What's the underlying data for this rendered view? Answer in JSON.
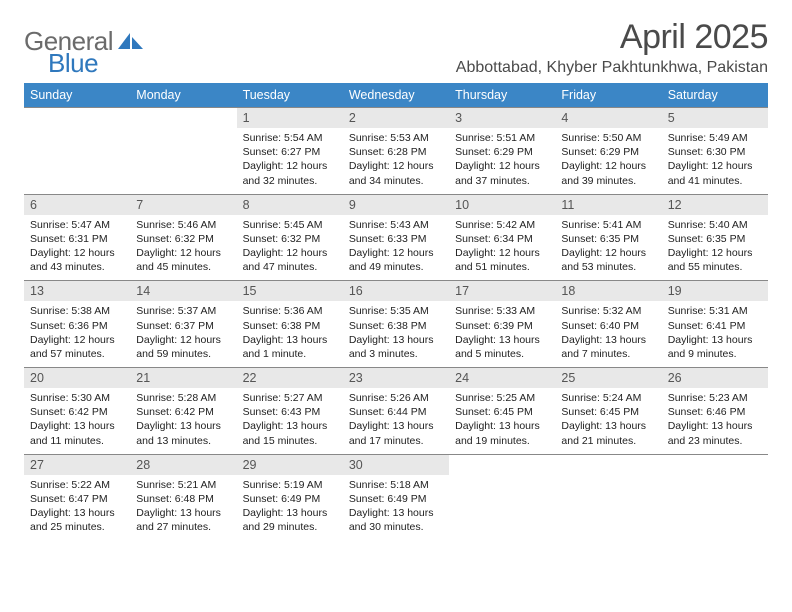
{
  "logo": {
    "text1": "General",
    "text2": "Blue"
  },
  "header": {
    "month_title": "April 2025",
    "location": "Abbottabad, Khyber Pakhtunkhwa, Pakistan"
  },
  "styling": {
    "header_bg": "#3b86c6",
    "header_text": "#ffffff",
    "daynum_bg": "#e8e8e8",
    "daynum_text": "#555555",
    "cell_text": "#222222",
    "page_bg": "#ffffff",
    "border_color": "#888888",
    "logo_gray": "#6b6b6b",
    "logo_blue": "#2f78bd",
    "title_color": "#4a4a4a",
    "font_family": "Arial",
    "month_title_size": 34,
    "location_size": 16,
    "weekday_size": 12.5,
    "daynum_size": 12.5,
    "cell_size": 10.5
  },
  "weekdays": [
    "Sunday",
    "Monday",
    "Tuesday",
    "Wednesday",
    "Thursday",
    "Friday",
    "Saturday"
  ],
  "weeks": [
    {
      "nums": [
        "",
        "",
        "1",
        "2",
        "3",
        "4",
        "5"
      ],
      "cells": [
        "",
        "",
        "Sunrise: 5:54 AM\nSunset: 6:27 PM\nDaylight: 12 hours and 32 minutes.",
        "Sunrise: 5:53 AM\nSunset: 6:28 PM\nDaylight: 12 hours and 34 minutes.",
        "Sunrise: 5:51 AM\nSunset: 6:29 PM\nDaylight: 12 hours and 37 minutes.",
        "Sunrise: 5:50 AM\nSunset: 6:29 PM\nDaylight: 12 hours and 39 minutes.",
        "Sunrise: 5:49 AM\nSunset: 6:30 PM\nDaylight: 12 hours and 41 minutes."
      ]
    },
    {
      "nums": [
        "6",
        "7",
        "8",
        "9",
        "10",
        "11",
        "12"
      ],
      "cells": [
        "Sunrise: 5:47 AM\nSunset: 6:31 PM\nDaylight: 12 hours and 43 minutes.",
        "Sunrise: 5:46 AM\nSunset: 6:32 PM\nDaylight: 12 hours and 45 minutes.",
        "Sunrise: 5:45 AM\nSunset: 6:32 PM\nDaylight: 12 hours and 47 minutes.",
        "Sunrise: 5:43 AM\nSunset: 6:33 PM\nDaylight: 12 hours and 49 minutes.",
        "Sunrise: 5:42 AM\nSunset: 6:34 PM\nDaylight: 12 hours and 51 minutes.",
        "Sunrise: 5:41 AM\nSunset: 6:35 PM\nDaylight: 12 hours and 53 minutes.",
        "Sunrise: 5:40 AM\nSunset: 6:35 PM\nDaylight: 12 hours and 55 minutes."
      ]
    },
    {
      "nums": [
        "13",
        "14",
        "15",
        "16",
        "17",
        "18",
        "19"
      ],
      "cells": [
        "Sunrise: 5:38 AM\nSunset: 6:36 PM\nDaylight: 12 hours and 57 minutes.",
        "Sunrise: 5:37 AM\nSunset: 6:37 PM\nDaylight: 12 hours and 59 minutes.",
        "Sunrise: 5:36 AM\nSunset: 6:38 PM\nDaylight: 13 hours and 1 minute.",
        "Sunrise: 5:35 AM\nSunset: 6:38 PM\nDaylight: 13 hours and 3 minutes.",
        "Sunrise: 5:33 AM\nSunset: 6:39 PM\nDaylight: 13 hours and 5 minutes.",
        "Sunrise: 5:32 AM\nSunset: 6:40 PM\nDaylight: 13 hours and 7 minutes.",
        "Sunrise: 5:31 AM\nSunset: 6:41 PM\nDaylight: 13 hours and 9 minutes."
      ]
    },
    {
      "nums": [
        "20",
        "21",
        "22",
        "23",
        "24",
        "25",
        "26"
      ],
      "cells": [
        "Sunrise: 5:30 AM\nSunset: 6:42 PM\nDaylight: 13 hours and 11 minutes.",
        "Sunrise: 5:28 AM\nSunset: 6:42 PM\nDaylight: 13 hours and 13 minutes.",
        "Sunrise: 5:27 AM\nSunset: 6:43 PM\nDaylight: 13 hours and 15 minutes.",
        "Sunrise: 5:26 AM\nSunset: 6:44 PM\nDaylight: 13 hours and 17 minutes.",
        "Sunrise: 5:25 AM\nSunset: 6:45 PM\nDaylight: 13 hours and 19 minutes.",
        "Sunrise: 5:24 AM\nSunset: 6:45 PM\nDaylight: 13 hours and 21 minutes.",
        "Sunrise: 5:23 AM\nSunset: 6:46 PM\nDaylight: 13 hours and 23 minutes."
      ]
    },
    {
      "nums": [
        "27",
        "28",
        "29",
        "30",
        "",
        "",
        ""
      ],
      "cells": [
        "Sunrise: 5:22 AM\nSunset: 6:47 PM\nDaylight: 13 hours and 25 minutes.",
        "Sunrise: 5:21 AM\nSunset: 6:48 PM\nDaylight: 13 hours and 27 minutes.",
        "Sunrise: 5:19 AM\nSunset: 6:49 PM\nDaylight: 13 hours and 29 minutes.",
        "Sunrise: 5:18 AM\nSunset: 6:49 PM\nDaylight: 13 hours and 30 minutes.",
        "",
        "",
        ""
      ]
    }
  ]
}
